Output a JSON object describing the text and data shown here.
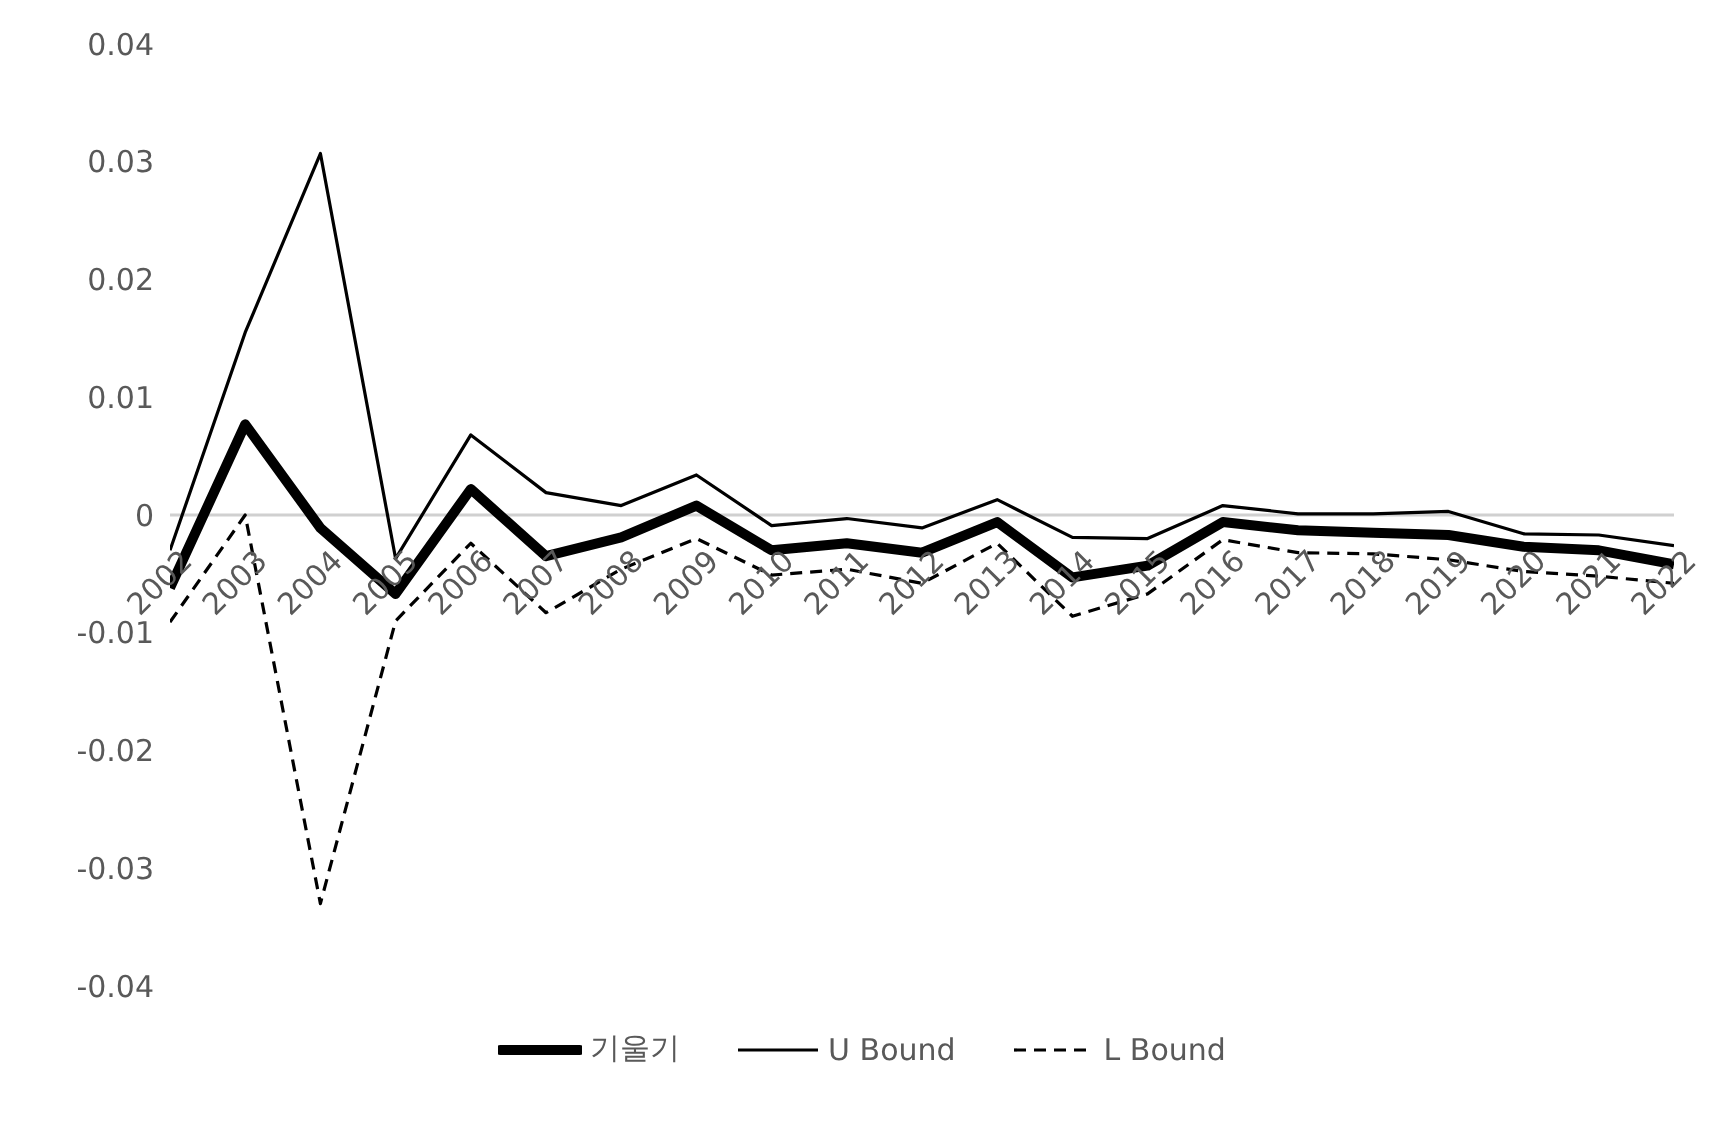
{
  "chart_data": {
    "type": "line",
    "categories": [
      "2002",
      "2003",
      "2004",
      "2005",
      "2006",
      "2007",
      "2008",
      "2009",
      "2010",
      "2011",
      "2012",
      "2013",
      "2014",
      "2015",
      "2016",
      "2017",
      "2018",
      "2019",
      "2020",
      "2021",
      "2022"
    ],
    "series": [
      {
        "name": "기울기",
        "color": "#000000",
        "line_style": "solid",
        "values": [
          -0.0062,
          0.0077,
          -0.0011,
          -0.0067,
          0.0022,
          -0.0035,
          -0.0019,
          0.0008,
          -0.003,
          -0.0024,
          -0.0032,
          -0.0006,
          -0.0053,
          -0.0043,
          -0.0006,
          -0.0013,
          -0.0015,
          -0.0017,
          -0.0027,
          -0.003,
          -0.0042
        ]
      },
      {
        "name": "U Bound",
        "color": "#000000",
        "line_style": "solid",
        "values": [
          -0.003,
          0.0155,
          0.0307,
          -0.0037,
          0.0068,
          0.0019,
          0.0008,
          0.0034,
          -0.0009,
          -0.0003,
          -0.0011,
          0.0013,
          -0.0019,
          -0.002,
          0.0008,
          0.0001,
          0.0001,
          0.0003,
          -0.0016,
          -0.0017,
          -0.0026
        ]
      },
      {
        "name": "L Bound",
        "color": "#000000",
        "line_style": "dashed",
        "values": [
          -0.0091,
          0,
          -0.033,
          -0.009,
          -0.0024,
          -0.0083,
          -0.0046,
          -0.002,
          -0.0051,
          -0.0046,
          -0.0058,
          -0.0024,
          -0.0086,
          -0.0067,
          -0.0021,
          -0.0032,
          -0.0033,
          -0.0038,
          -0.0048,
          -0.0052,
          -0.0058
        ]
      }
    ],
    "ylim": [
      -0.04,
      0.04
    ],
    "yticks": [
      -0.04,
      -0.03,
      -0.02,
      -0.01,
      0,
      0.01,
      0.02,
      0.03,
      0.04
    ],
    "grid": false,
    "legend": "bottom",
    "marker": "none"
  }
}
